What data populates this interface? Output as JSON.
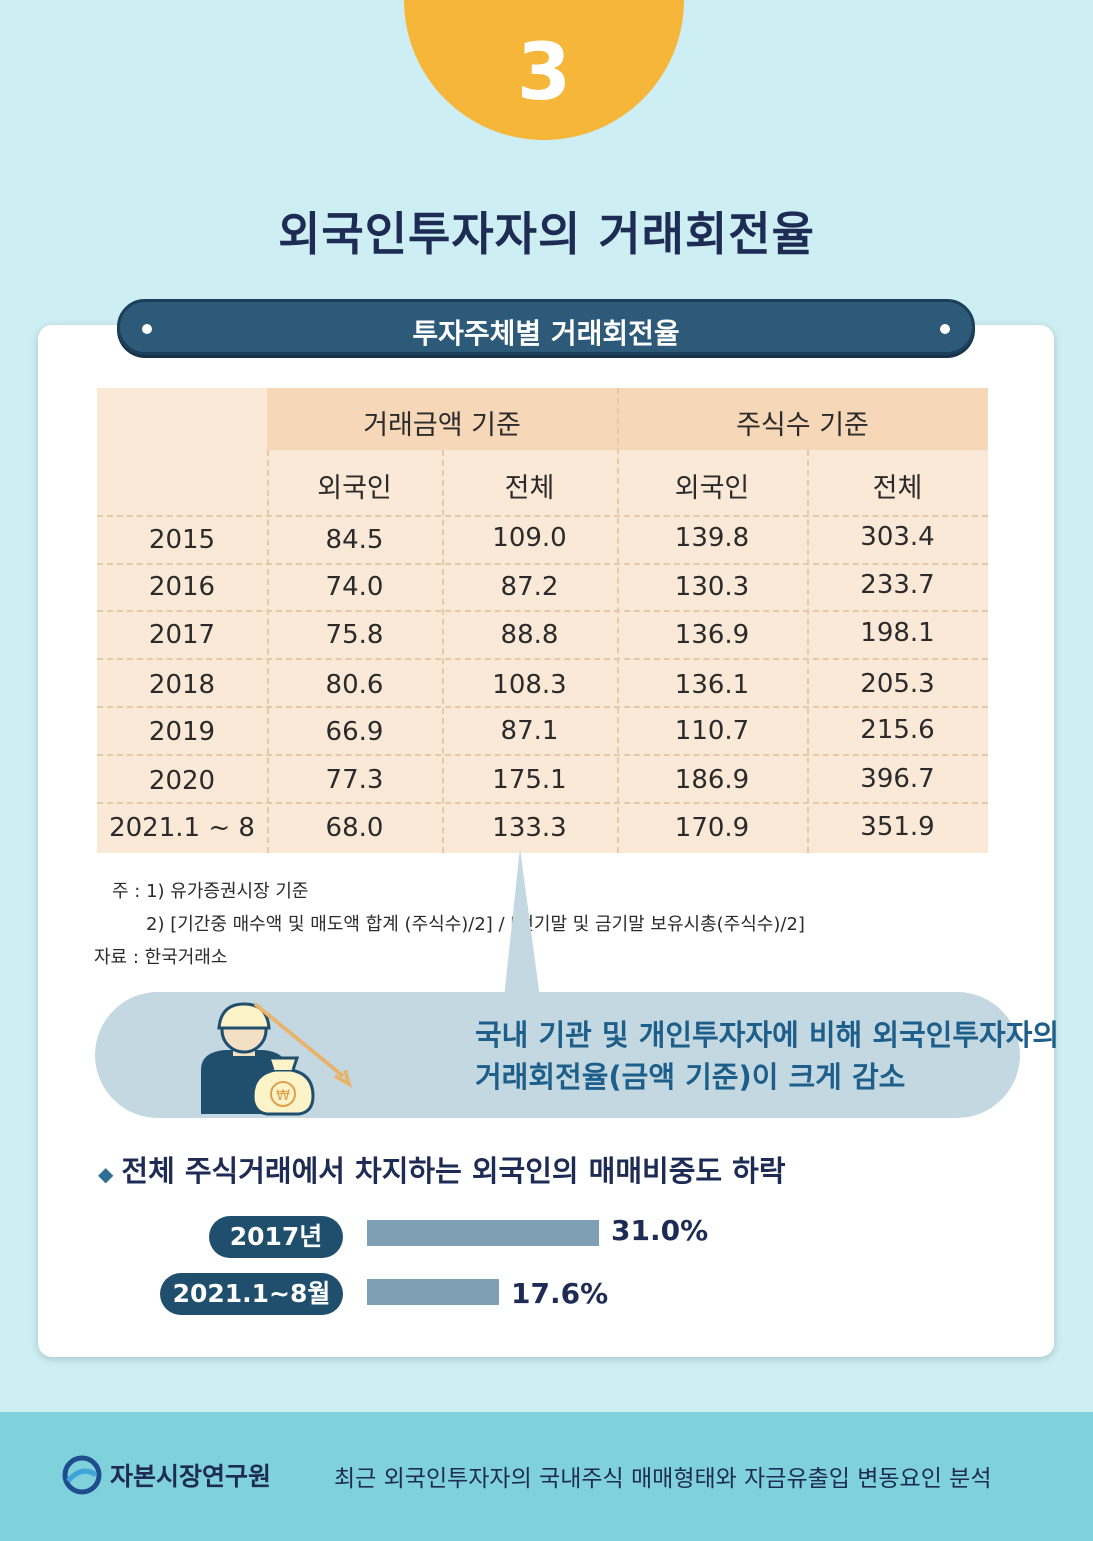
{
  "badge_number": "3",
  "main_title": "외국인투자자의 거래회전율",
  "section_title": "투자주체별 거래회전율",
  "table": {
    "group_headers": [
      "거래금액 기준",
      "주식수 기준"
    ],
    "sub_headers": [
      "외국인",
      "전체",
      "외국인",
      "전체"
    ],
    "rows": [
      {
        "year": "2015",
        "values": [
          "84.5",
          "109.0",
          "139.8",
          "303.4"
        ]
      },
      {
        "year": "2016",
        "values": [
          "74.0",
          "87.2",
          "130.3",
          "233.7"
        ]
      },
      {
        "year": "2017",
        "values": [
          "75.8",
          "88.8",
          "136.9",
          "198.1"
        ]
      },
      {
        "year": "2018",
        "values": [
          "80.6",
          "108.3",
          "136.1",
          "205.3"
        ]
      },
      {
        "year": "2019",
        "values": [
          "66.9",
          "87.1",
          "110.7",
          "215.6"
        ]
      },
      {
        "year": "2020",
        "values": [
          "77.3",
          "175.1",
          "186.9",
          "396.7"
        ]
      },
      {
        "year": "2021.1 ~ 8",
        "values": [
          "68.0",
          "133.3",
          "170.9",
          "351.9"
        ]
      }
    ]
  },
  "notes": {
    "note1": "주 : 1) 유가증권시장 기준",
    "note2": "2) [기간중 매수액 및 매도액 합계 (주식수)/2] / [전기말 및 금기말 보유시총(주식수)/2]",
    "source": "자료 : 한국거래소"
  },
  "callout": {
    "line1": "국내 기관 및 개인투자자에 비해 외국인투자자의",
    "line2": "거래회전율(금액 기준)이 크게 감소"
  },
  "share_section": {
    "title": "전체 주식거래에서 차지하는 외국인의 매매비중도 하락",
    "bars": [
      {
        "label": "2017년",
        "value": 31.0,
        "value_text": "31.0%"
      },
      {
        "label": "2021.1~8월",
        "value": 17.6,
        "value_text": "17.6%"
      }
    ]
  },
  "footer": {
    "org_name": "자본시장연구원",
    "report_title": "최근 외국인투자자의 국내주식 매매형태와 자금유출입 변동요인 분석"
  },
  "colors": {
    "background": "#cdeef3",
    "badge": "#f6b63a",
    "title": "#1e2c55",
    "pill": "#2d5a78",
    "table_bg": "#fbe9d7",
    "table_header": "#f6d7b7",
    "callout_bg": "#c4d8e2",
    "callout_text": "#1d5f8a",
    "bar": "#7f9fb4",
    "footer_bg": "#7fd1db"
  },
  "icons": [
    "worker-with-money-bag-icon",
    "down-arrow-icon",
    "logo-icon",
    "diamond-bullet-icon"
  ]
}
